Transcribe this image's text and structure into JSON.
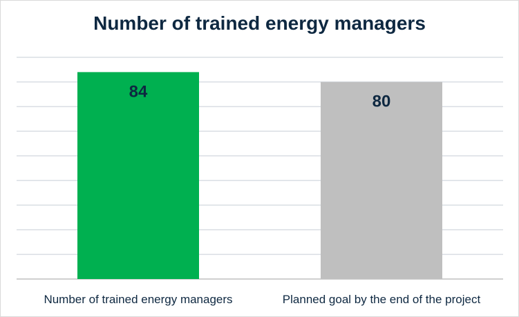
{
  "chart_data": {
    "type": "bar",
    "title": "Number of trained energy managers",
    "categories": [
      "Number of trained energy managers",
      "Planned goal by the end of the project"
    ],
    "values": [
      84,
      80
    ],
    "data_labels": [
      "84",
      "80"
    ],
    "bar_colors": [
      "#00b050",
      "#bfbfbf"
    ],
    "ylim": [
      0,
      90
    ],
    "grid": true,
    "legend": "none",
    "xlabel": "",
    "ylabel": ""
  }
}
